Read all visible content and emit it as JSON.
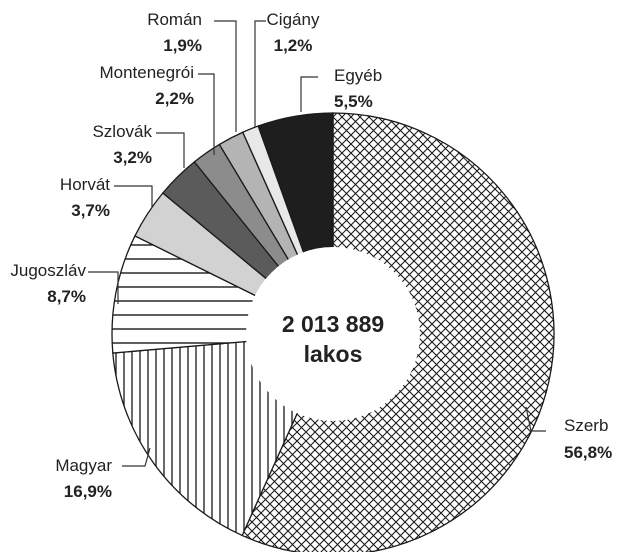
{
  "chart_data": {
    "type": "pie",
    "center_label": {
      "line1": "2 013 889",
      "line2": "lakos"
    },
    "slices": [
      {
        "label": "Szerb",
        "value": 56.8,
        "value_text": "56,8%",
        "fill": "crosshatch"
      },
      {
        "label": "Magyar",
        "value": 16.9,
        "value_text": "16,9%",
        "fill": "vertical-lines"
      },
      {
        "label": "Jugoszláv",
        "value": 8.7,
        "value_text": "8,7%",
        "fill": "horizontal-lines"
      },
      {
        "label": "Horvát",
        "value": 3.7,
        "value_text": "3,7%",
        "fill": "#d2d2d2"
      },
      {
        "label": "Szlovák",
        "value": 3.2,
        "value_text": "3,2%",
        "fill": "#5b5b5b"
      },
      {
        "label": "Montenegrói",
        "value": 2.2,
        "value_text": "2,2%",
        "fill": "#8c8c8c"
      },
      {
        "label": "Román",
        "value": 1.9,
        "value_text": "1,9%",
        "fill": "#b4b4b4"
      },
      {
        "label": "Cigány",
        "value": 1.2,
        "value_text": "1,2%",
        "fill": "#e8e8e8"
      },
      {
        "label": "Egyéb",
        "value": 5.5,
        "value_text": "5,5%",
        "fill": "#1e1e1e"
      }
    ]
  }
}
